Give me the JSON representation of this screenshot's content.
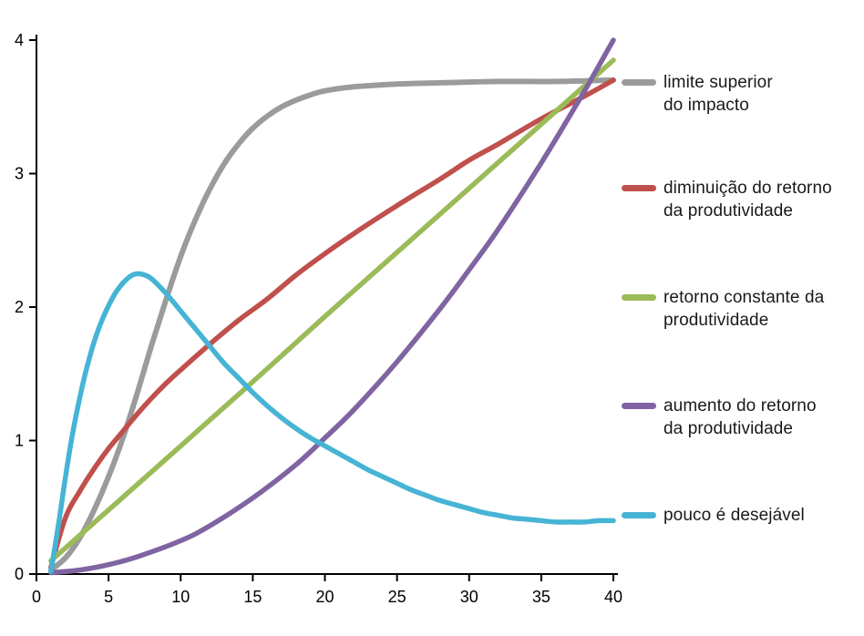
{
  "chart_data": {
    "type": "line",
    "title": "",
    "xlabel": "",
    "ylabel": "",
    "xlim": [
      0,
      40
    ],
    "ylim": [
      0,
      4
    ],
    "xticks": [
      0,
      5,
      10,
      15,
      20,
      25,
      30,
      35,
      40
    ],
    "yticks": [
      0,
      1,
      2,
      3,
      4
    ],
    "grid": false,
    "legend_position": "right",
    "axis_color": "#000000",
    "series": [
      {
        "name": "limite superior do impacto",
        "legend_lines": [
          "limite superior",
          "do impacto"
        ],
        "color": "#9b9b9b",
        "points": [
          [
            1,
            0.03
          ],
          [
            2,
            0.12
          ],
          [
            3,
            0.27
          ],
          [
            4,
            0.48
          ],
          [
            5,
            0.73
          ],
          [
            6,
            1.02
          ],
          [
            7,
            1.36
          ],
          [
            8,
            1.72
          ],
          [
            9,
            2.06
          ],
          [
            10,
            2.38
          ],
          [
            11,
            2.65
          ],
          [
            12,
            2.88
          ],
          [
            13,
            3.07
          ],
          [
            14,
            3.22
          ],
          [
            15,
            3.34
          ],
          [
            16,
            3.43
          ],
          [
            17,
            3.5
          ],
          [
            18,
            3.55
          ],
          [
            19,
            3.59
          ],
          [
            20,
            3.62
          ],
          [
            22,
            3.65
          ],
          [
            25,
            3.67
          ],
          [
            28,
            3.68
          ],
          [
            32,
            3.69
          ],
          [
            36,
            3.69
          ],
          [
            40,
            3.7
          ]
        ]
      },
      {
        "name": "diminuição do retorno da produtividade",
        "legend_lines": [
          "diminuição do retorno",
          "da produtividade"
        ],
        "color": "#c0504d",
        "points": [
          [
            1,
            0.05
          ],
          [
            2,
            0.42
          ],
          [
            3,
            0.62
          ],
          [
            4,
            0.79
          ],
          [
            5,
            0.94
          ],
          [
            6,
            1.07
          ],
          [
            7,
            1.2
          ],
          [
            8,
            1.32
          ],
          [
            9,
            1.43
          ],
          [
            10,
            1.53
          ],
          [
            12,
            1.72
          ],
          [
            14,
            1.9
          ],
          [
            16,
            2.06
          ],
          [
            18,
            2.24
          ],
          [
            20,
            2.4
          ],
          [
            22,
            2.55
          ],
          [
            25,
            2.76
          ],
          [
            28,
            2.96
          ],
          [
            30,
            3.1
          ],
          [
            32,
            3.22
          ],
          [
            35,
            3.41
          ],
          [
            38,
            3.58
          ],
          [
            40,
            3.7
          ]
        ]
      },
      {
        "name": "retorno constante da produtividade",
        "legend_lines": [
          "retorno constante da",
          "produtividade"
        ],
        "color": "#9bbb59",
        "points": [
          [
            1,
            0.1
          ],
          [
            5,
            0.48
          ],
          [
            10,
            0.96
          ],
          [
            15,
            1.44
          ],
          [
            20,
            1.93
          ],
          [
            25,
            2.41
          ],
          [
            30,
            2.89
          ],
          [
            35,
            3.37
          ],
          [
            40,
            3.85
          ]
        ]
      },
      {
        "name": "aumento do retorno da produtividade",
        "legend_lines": [
          "aumento do retorno",
          "da produtividade"
        ],
        "color": "#8064a2",
        "points": [
          [
            1,
            0.01
          ],
          [
            3,
            0.03
          ],
          [
            5,
            0.07
          ],
          [
            7,
            0.13
          ],
          [
            10,
            0.25
          ],
          [
            12,
            0.36
          ],
          [
            15,
            0.57
          ],
          [
            18,
            0.82
          ],
          [
            20,
            1.02
          ],
          [
            22,
            1.23
          ],
          [
            25,
            1.59
          ],
          [
            28,
            1.99
          ],
          [
            30,
            2.28
          ],
          [
            32,
            2.58
          ],
          [
            35,
            3.08
          ],
          [
            38,
            3.62
          ],
          [
            40,
            4.0
          ]
        ]
      },
      {
        "name": "pouco é desejável",
        "legend_lines": [
          "pouco é desejável"
        ],
        "color": "#46b4d4",
        "points": [
          [
            1,
            0.02
          ],
          [
            1.5,
            0.35
          ],
          [
            2,
            0.72
          ],
          [
            2.5,
            1.05
          ],
          [
            3,
            1.32
          ],
          [
            3.5,
            1.55
          ],
          [
            4,
            1.74
          ],
          [
            4.5,
            1.89
          ],
          [
            5,
            2.01
          ],
          [
            5.5,
            2.11
          ],
          [
            6,
            2.18
          ],
          [
            6.5,
            2.23
          ],
          [
            7,
            2.25
          ],
          [
            7.5,
            2.24
          ],
          [
            8,
            2.21
          ],
          [
            9,
            2.1
          ],
          [
            10,
            1.97
          ],
          [
            11,
            1.84
          ],
          [
            12,
            1.71
          ],
          [
            13,
            1.58
          ],
          [
            14,
            1.47
          ],
          [
            15,
            1.36
          ],
          [
            16,
            1.26
          ],
          [
            17,
            1.17
          ],
          [
            18,
            1.09
          ],
          [
            19,
            1.02
          ],
          [
            20,
            0.96
          ],
          [
            21,
            0.9
          ],
          [
            22,
            0.84
          ],
          [
            23,
            0.78
          ],
          [
            24,
            0.73
          ],
          [
            25,
            0.68
          ],
          [
            26,
            0.63
          ],
          [
            27,
            0.59
          ],
          [
            28,
            0.55
          ],
          [
            29,
            0.52
          ],
          [
            30,
            0.49
          ],
          [
            31,
            0.46
          ],
          [
            32,
            0.44
          ],
          [
            33,
            0.42
          ],
          [
            34,
            0.41
          ],
          [
            35,
            0.4
          ],
          [
            36,
            0.39
          ],
          [
            37,
            0.39
          ],
          [
            38,
            0.39
          ],
          [
            39,
            0.4
          ],
          [
            40,
            0.4
          ]
        ]
      }
    ]
  }
}
